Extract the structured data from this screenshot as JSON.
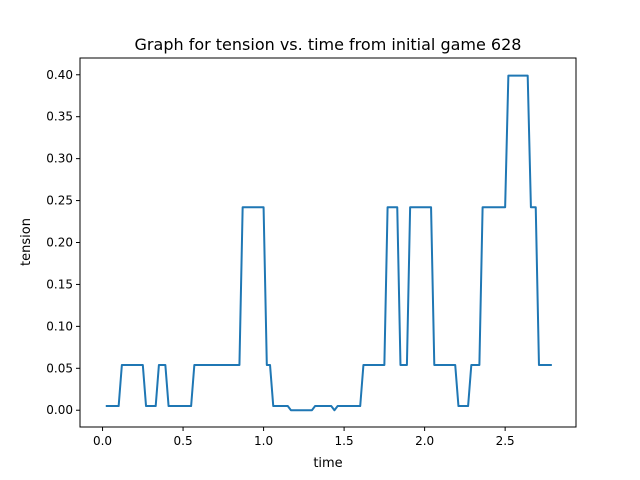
{
  "chart_data": {
    "type": "line",
    "title": "Graph for tension vs. time from initial game 628",
    "xlabel": "time",
    "ylabel": "tension",
    "xlim": [
      -0.14,
      2.94
    ],
    "ylim": [
      -0.02,
      0.42
    ],
    "xticks": [
      0.0,
      0.5,
      1.0,
      1.5,
      2.0,
      2.5
    ],
    "xtick_labels": [
      "0.0",
      "0.5",
      "1.0",
      "1.5",
      "2.0",
      "2.5"
    ],
    "yticks": [
      0.0,
      0.05,
      0.1,
      0.15,
      0.2,
      0.25,
      0.3,
      0.35,
      0.4
    ],
    "ytick_labels": [
      "0.00",
      "0.05",
      "0.10",
      "0.15",
      "0.20",
      "0.25",
      "0.30",
      "0.35",
      "0.40"
    ],
    "grid": false,
    "line_color": "#1f77b4",
    "series": [
      {
        "x": [
          0.02,
          0.1,
          0.12,
          0.25,
          0.27,
          0.33,
          0.35,
          0.39,
          0.41,
          0.55,
          0.57,
          0.85,
          0.87,
          1.0,
          1.02,
          1.04,
          1.06,
          1.15,
          1.17,
          1.3,
          1.32,
          1.42,
          1.44,
          1.46,
          1.48,
          1.6,
          1.62,
          1.75,
          1.77,
          1.83,
          1.85,
          1.89,
          1.91,
          2.04,
          2.06,
          2.19,
          2.21,
          2.27,
          2.29,
          2.34,
          2.36,
          2.5,
          2.52,
          2.64,
          2.66,
          2.69,
          2.71,
          2.79
        ],
        "y": [
          0.005,
          0.005,
          0.054,
          0.054,
          0.005,
          0.005,
          0.054,
          0.054,
          0.005,
          0.005,
          0.054,
          0.054,
          0.242,
          0.242,
          0.054,
          0.054,
          0.005,
          0.005,
          0.0,
          0.0,
          0.005,
          0.005,
          0.0,
          0.005,
          0.005,
          0.005,
          0.054,
          0.054,
          0.242,
          0.242,
          0.054,
          0.054,
          0.242,
          0.242,
          0.054,
          0.054,
          0.005,
          0.005,
          0.054,
          0.054,
          0.242,
          0.242,
          0.399,
          0.399,
          0.242,
          0.242,
          0.054,
          0.054
        ]
      }
    ]
  }
}
